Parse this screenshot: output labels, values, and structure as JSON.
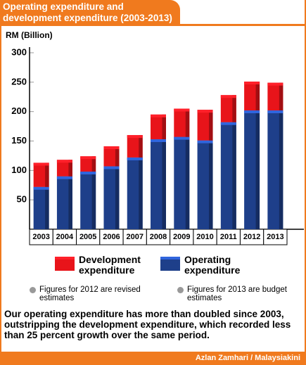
{
  "chart_data": {
    "type": "bar",
    "stacked": true,
    "title": "Operating expenditure and development expenditure (2003-2013)",
    "y_label": "RM (Billion)",
    "categories": [
      "2003",
      "2004",
      "2005",
      "2006",
      "2007",
      "2008",
      "2009",
      "2010",
      "2011",
      "2012",
      "2013"
    ],
    "series": [
      {
        "name": "Operating expenditure",
        "color": "#1e3f8a",
        "values": [
          72,
          90,
          98,
          107,
          122,
          153,
          157,
          151,
          182,
          202,
          202
        ]
      },
      {
        "name": "Development expenditure",
        "color": "#e8141a",
        "values": [
          41,
          28,
          26,
          34,
          38,
          42,
          48,
          52,
          46,
          49,
          47
        ]
      }
    ],
    "ylim": [
      0,
      300
    ],
    "yticks": [
      50,
      100,
      150,
      200,
      250,
      300
    ],
    "grid": false,
    "notes": [
      "Figures for 2012 are revised estimates",
      "Figures for 2013 are budget estimates"
    ],
    "description": "Our operating expenditure has more than doubled since 2003, outstripping the development expenditure, which recorded less than 25 percent growth over the same period.",
    "source": "Azlan Zamhari / Malaysiakini"
  }
}
